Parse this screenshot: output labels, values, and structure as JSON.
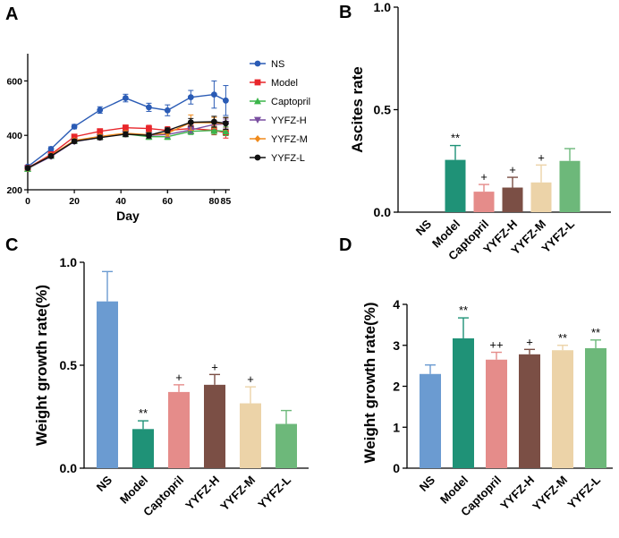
{
  "chart_data": [
    {
      "panel": "A",
      "type": "line",
      "xlabel": "Day",
      "ylabel": "",
      "xlim": [
        0,
        86
      ],
      "ylim": [
        200,
        700
      ],
      "x_ticks": [
        0,
        20,
        40,
        60,
        80,
        85
      ],
      "x_tick_labels": [
        "0",
        "20",
        "40",
        "60",
        "80",
        "85"
      ],
      "y_ticks": [
        200,
        400,
        600
      ],
      "y_tick_labels": [
        "200",
        "400",
        "600"
      ],
      "legend_position": "right",
      "x": [
        0,
        10,
        20,
        31,
        42,
        52,
        60,
        70,
        80,
        85
      ],
      "series": [
        {
          "name": "NS",
          "color": "#2a5bb5",
          "marker": "circle",
          "values": [
            285,
            350,
            432,
            493,
            537,
            503,
            492,
            540,
            550,
            528
          ],
          "errors": [
            6,
            8,
            8,
            12,
            14,
            15,
            20,
            25,
            50,
            55
          ]
        },
        {
          "name": "Model",
          "color": "#e8262b",
          "marker": "square",
          "values": [
            280,
            330,
            395,
            415,
            428,
            425,
            418,
            425,
            418,
            410
          ],
          "errors": [
            5,
            6,
            7,
            8,
            10,
            12,
            14,
            15,
            16,
            20
          ]
        },
        {
          "name": "Captopril",
          "color": "#3bb54a",
          "marker": "triangle-up",
          "values": [
            277,
            325,
            380,
            395,
            405,
            395,
            395,
            415,
            418,
            415
          ],
          "errors": [
            5,
            6,
            7,
            8,
            9,
            10,
            10,
            12,
            14,
            16
          ]
        },
        {
          "name": "YYFZ-H",
          "color": "#7a4fa0",
          "marker": "triangle-down",
          "values": [
            278,
            322,
            377,
            392,
            406,
            400,
            403,
            420,
            440,
            442
          ],
          "errors": [
            5,
            6,
            7,
            8,
            9,
            10,
            11,
            12,
            15,
            18
          ]
        },
        {
          "name": "YYFZ-M",
          "color": "#f08a1c",
          "marker": "diamond",
          "values": [
            279,
            326,
            381,
            396,
            408,
            402,
            408,
            447,
            446,
            443
          ],
          "errors": [
            5,
            6,
            7,
            8,
            9,
            10,
            11,
            28,
            20,
            22
          ]
        },
        {
          "name": "YYFZ-L",
          "color": "#111111",
          "marker": "circle",
          "values": [
            280,
            324,
            378,
            392,
            404,
            400,
            418,
            448,
            450,
            444
          ],
          "errors": [
            5,
            6,
            7,
            8,
            9,
            10,
            10,
            14,
            20,
            22
          ]
        }
      ]
    },
    {
      "panel": "B",
      "type": "bar",
      "title": "",
      "xlabel": "",
      "ylabel": "Ascites rate",
      "ylim": [
        0,
        1.0
      ],
      "y_ticks": [
        0,
        0.5,
        1.0
      ],
      "y_tick_labels": [
        "0.0",
        "0.5",
        "1.0"
      ],
      "categories": [
        "NS",
        "Model",
        "Captopril",
        "YYFZ-H",
        "YYFZ-M",
        "YYFZ-L"
      ],
      "values": [
        0,
        0.255,
        0.1,
        0.12,
        0.145,
        0.25
      ],
      "errors": [
        0,
        0.07,
        0.035,
        0.05,
        0.085,
        0.06
      ],
      "colors": [
        "#6b9bd1",
        "#1f9277",
        "#e58c8a",
        "#7b4f45",
        "#ecd3a8",
        "#6db87a"
      ],
      "annotations": [
        "",
        "**",
        "+",
        "+",
        "+",
        ""
      ]
    },
    {
      "panel": "C",
      "type": "bar",
      "title": "",
      "xlabel": "",
      "ylabel": "Weight growth rate(%)",
      "ylim": [
        0,
        1.0
      ],
      "y_ticks": [
        0,
        0.5,
        1.0
      ],
      "y_tick_labels": [
        "0.0",
        "0.5",
        "1.0"
      ],
      "categories": [
        "NS",
        "Model",
        "Captopril",
        "YYFZ-H",
        "YYFZ-M",
        "YYFZ-L"
      ],
      "values": [
        0.81,
        0.19,
        0.37,
        0.405,
        0.315,
        0.215
      ],
      "errors": [
        0.145,
        0.04,
        0.035,
        0.05,
        0.08,
        0.065
      ],
      "colors": [
        "#6b9bd1",
        "#1f9277",
        "#e58c8a",
        "#7b4f45",
        "#ecd3a8",
        "#6db87a"
      ],
      "annotations": [
        "",
        "**",
        "+",
        "+",
        "+",
        ""
      ]
    },
    {
      "panel": "D",
      "type": "bar",
      "title": "",
      "xlabel": "",
      "ylabel": "Weight growth rate(%)",
      "ylim": [
        0,
        4
      ],
      "y_ticks": [
        0,
        1,
        2,
        3,
        4
      ],
      "y_tick_labels": [
        "0",
        "1",
        "2",
        "3",
        "4"
      ],
      "categories": [
        "NS",
        "Model",
        "Captopril",
        "YYFZ-H",
        "YYFZ-M",
        "YYFZ-L"
      ],
      "values": [
        2.3,
        3.17,
        2.65,
        2.78,
        2.88,
        2.93
      ],
      "errors": [
        0.22,
        0.5,
        0.18,
        0.12,
        0.12,
        0.2
      ],
      "colors": [
        "#6b9bd1",
        "#1f9277",
        "#e58c8a",
        "#7b4f45",
        "#ecd3a8",
        "#6db87a"
      ],
      "annotations": [
        "",
        "**",
        "++",
        "+",
        "**",
        "**"
      ]
    }
  ]
}
